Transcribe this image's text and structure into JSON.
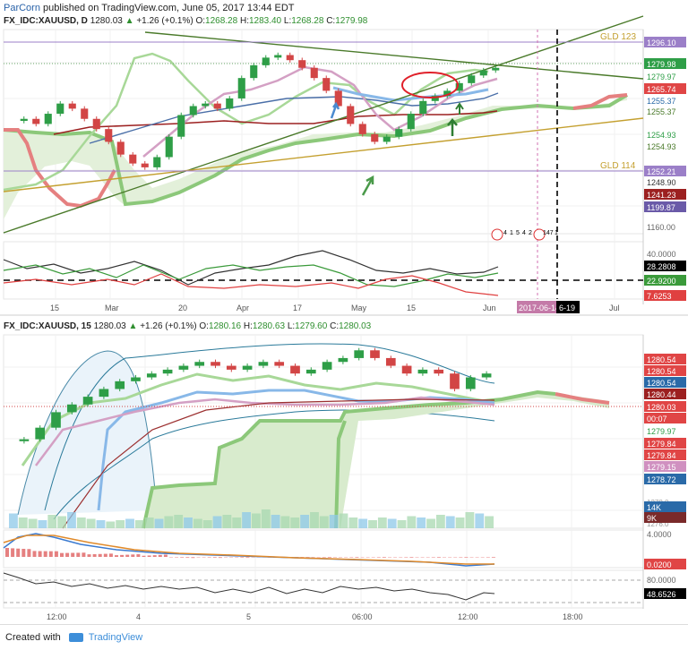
{
  "header": {
    "author": "ParCorn",
    "published": "published on TradingView.com, June 05, 2017 13:44 EDT"
  },
  "colors": {
    "up_candle": "#2e9e47",
    "down_candle": "#d24545",
    "cloud_fill": "#e3f0da",
    "span_a": "#8cc87a",
    "span_b": "#e58080",
    "tenkan": "#d4a0c4",
    "kijun": "#9c2020",
    "bb_line": "#4a8ad0",
    "trendline": "#4a7a2a",
    "gold_line": "#c4a030",
    "annotation_red": "#e0202a"
  },
  "top": {
    "title": {
      "symbol": "FX_IDC:XAUUSD, D",
      "last": "1280.03",
      "change": "+1.26 (+0.1%)",
      "o_label": "O:",
      "o": "1268.28",
      "h_label": "H:",
      "h": "1283.40",
      "l_label": "L:",
      "l": "1268.28",
      "c_label": "C:",
      "c": "1279.98"
    },
    "price_labels": [
      "1296.10",
      "1279.98",
      "1279.97",
      "1265.74",
      "1255.37",
      "1255.37",
      "1254.93",
      "1254.93",
      "1252.21",
      "1248.90",
      "1241.23",
      "1199.87",
      "1160.00"
    ],
    "gld_labels": [
      "GLD 123",
      "GLD 114"
    ],
    "event_labels": [
      "4",
      "1",
      "5",
      "4",
      "2",
      "147",
      "1"
    ],
    "osc_labels": [
      "40.0000",
      "28.2808",
      "22.9200",
      "7.6253"
    ],
    "x_ticks": [
      "15",
      "Mar",
      "20",
      "Apr",
      "17",
      "May",
      "15",
      "Jun",
      "Jul"
    ],
    "cursor_date": "2017-06-14",
    "cursor_date_tail": "6-19"
  },
  "bottom": {
    "title": {
      "symbol": "FX_IDC:XAUUSD, 15",
      "last": "1280.03",
      "change": "+1.26 (+0.1%)",
      "o_label": "O:",
      "o": "1280.16",
      "h_label": "H:",
      "h": "1280.63",
      "l_label": "L:",
      "l": "1279.60",
      "c_label": "C:",
      "c": "1280.03"
    },
    "price_labels": [
      "1280.54",
      "1280.54",
      "1280.54",
      "1280.44",
      "1280.03",
      "00:07",
      "1279.97",
      "1279.84",
      "1279.84",
      "1279.15",
      "1278.72"
    ],
    "vol_labels": [
      "1278.0",
      "1276.0",
      "14K",
      "9K"
    ],
    "macd_labels": [
      "4.0000",
      "0.0200"
    ],
    "rsi_labels": [
      "80.0000",
      "48.6526"
    ],
    "x_ticks": [
      "12:00",
      "4",
      "5",
      "06:00",
      "12:00",
      "18:00"
    ]
  },
  "footer": {
    "created_with": "Created with",
    "brand": "TradingView"
  },
  "chart_data": [
    {
      "type": "line",
      "title": "FX_IDC:XAUUSD, D",
      "x_ticks": [
        "15",
        "Mar",
        "20",
        "Apr",
        "17",
        "May",
        "15",
        "Jun",
        "Jul"
      ],
      "ylim": [
        1150,
        1310
      ],
      "series": [
        {
          "values": [
            1240,
            1236,
            1244,
            1252,
            1248,
            1240,
            1232,
            1222,
            1212,
            1205,
            1202,
            1210,
            1226,
            1243,
            1250,
            1252,
            1248,
            1256,
            1272,
            1282,
            1288,
            1290,
            1286,
            1280,
            1272,
            1262,
            1250,
            1236,
            1228,
            1222,
            1226,
            1232,
            1244,
            1254,
            1258,
            1262,
            1268,
            1274,
            1278,
            1280
          ]
        }
      ]
    },
    {
      "type": "line",
      "title": "FX_IDC:XAUUSD, 15",
      "x_ticks": [
        "12:00",
        "4",
        "5",
        "06:00",
        "12:00",
        "18:00"
      ],
      "ylim": [
        1276,
        1281
      ],
      "series": [
        {
          "values": [
            1278.3,
            1278.6,
            1279.0,
            1279.2,
            1279.4,
            1279.6,
            1279.8,
            1279.9,
            1280.0,
            1280.1,
            1280.2,
            1280.3,
            1280.2,
            1280.1,
            1280.2,
            1280.3,
            1280.2,
            1280.0,
            1280.1,
            1280.3,
            1280.4,
            1280.6,
            1280.4,
            1280.2,
            1280.0,
            1280.1,
            1280.0,
            1279.6,
            1279.9,
            1280.0
          ]
        }
      ]
    }
  ]
}
